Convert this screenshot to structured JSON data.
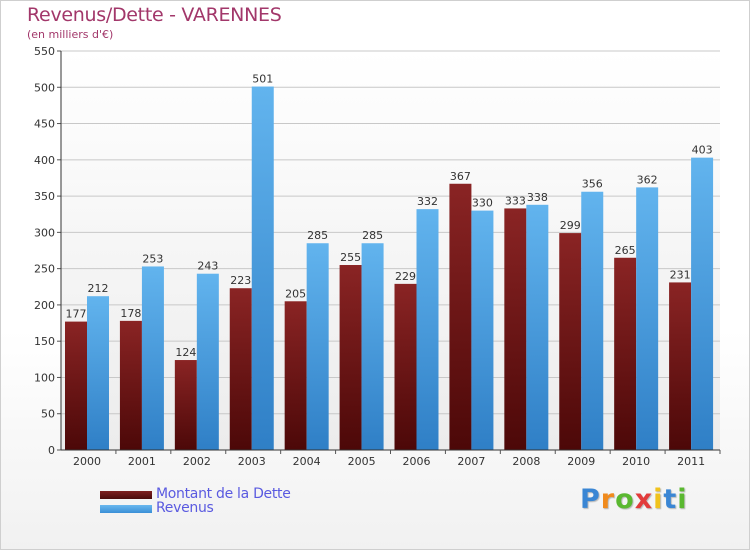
{
  "chart_data": {
    "type": "bar",
    "title": "Revenus/Dette - VARENNES",
    "subtitle": "(en milliers d'€)",
    "categories": [
      "2000",
      "2001",
      "2002",
      "2003",
      "2004",
      "2005",
      "2006",
      "2007",
      "2008",
      "2009",
      "2010",
      "2011"
    ],
    "series": [
      {
        "name": "Montant de la Dette",
        "color": "#7a1a1a",
        "values": [
          177,
          178,
          124,
          223,
          205,
          255,
          229,
          367,
          333,
          299,
          265,
          231
        ]
      },
      {
        "name": "Revenus",
        "color": "#4aa3e6",
        "values": [
          212,
          253,
          243,
          501,
          285,
          285,
          332,
          330,
          338,
          356,
          362,
          403
        ]
      }
    ],
    "ylim": [
      0,
      550
    ],
    "yticks": [
      0,
      50,
      100,
      150,
      200,
      250,
      300,
      350,
      400,
      450,
      500,
      550
    ],
    "grid": true,
    "legend": "bottom-left"
  },
  "logo": {
    "letters": [
      "P",
      "r",
      "o",
      "x",
      "i",
      "t",
      "i"
    ],
    "colors": [
      "#3a86d4",
      "#f08a1c",
      "#5ab830",
      "#e23b3b",
      "#f0c21c",
      "#3a86d4",
      "#5ab830"
    ]
  }
}
